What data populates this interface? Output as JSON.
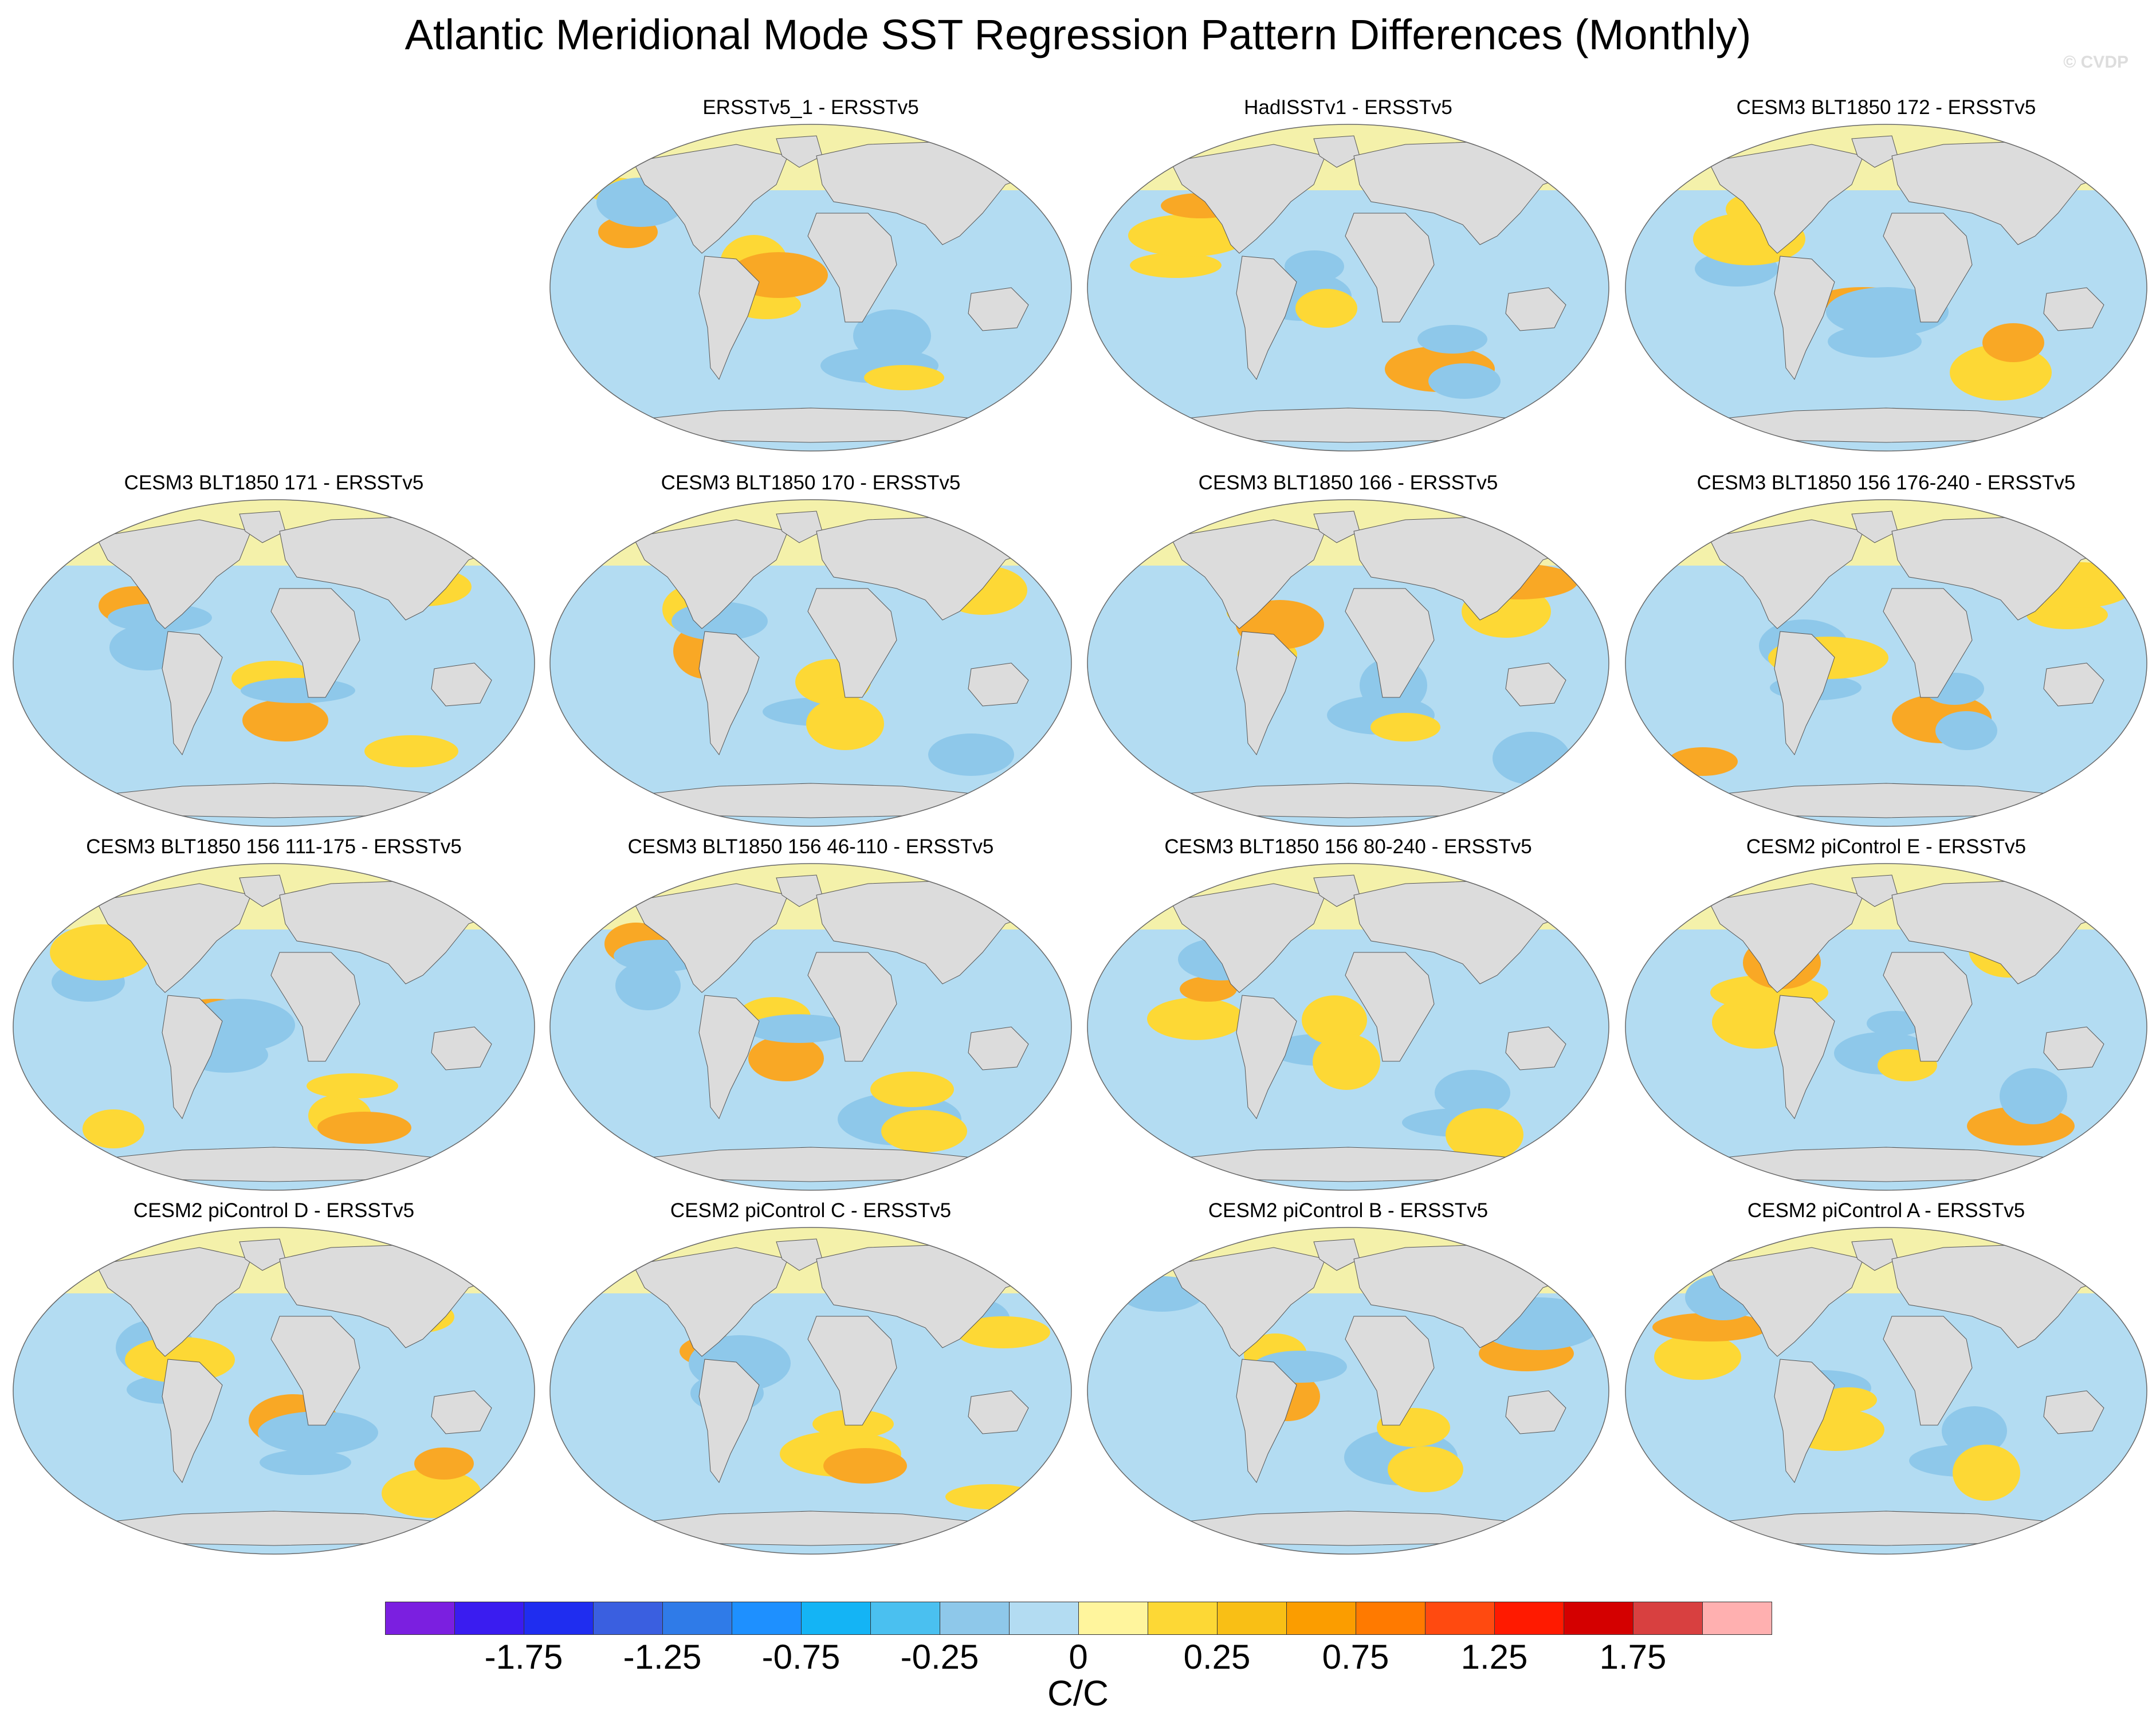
{
  "figure": {
    "title": "Atlantic Meridional Mode SST Regression Pattern Differences (Monthly)",
    "watermark": "© CVDP"
  },
  "panels": [
    {
      "title": "ERSSTv5_1 - ERSSTv5"
    },
    {
      "title": "HadISSTv1 - ERSSTv5"
    },
    {
      "title": "CESM3 BLT1850 172 - ERSSTv5"
    },
    {
      "title": "CESM3 BLT1850 171 - ERSSTv5"
    },
    {
      "title": "CESM3 BLT1850 170 - ERSSTv5"
    },
    {
      "title": "CESM3 BLT1850 166 - ERSSTv5"
    },
    {
      "title": "CESM3 BLT1850 156 176-240 - ERSSTv5"
    },
    {
      "title": "CESM3 BLT1850 156 111-175 - ERSSTv5"
    },
    {
      "title": "CESM3 BLT1850 156 46-110 - ERSSTv5"
    },
    {
      "title": "CESM3 BLT1850 156 80-240 - ERSSTv5"
    },
    {
      "title": "CESM2 piControl E - ERSSTv5"
    },
    {
      "title": "CESM2 piControl D - ERSSTv5"
    },
    {
      "title": "CESM2 piControl C - ERSSTv5"
    },
    {
      "title": "CESM2 piControl B - ERSSTv5"
    },
    {
      "title": "CESM2 piControl A - ERSSTv5"
    }
  ],
  "colors": {
    "land": "#dcdcdc",
    "ocean_neutral_pos": "#fff59d",
    "ocean_light_pos": "#fdd835",
    "ocean_med_pos": "#f9a825",
    "ocean_light_neg": "#b3dcf2",
    "ocean_med_neg": "#8ec8ea"
  },
  "colorbar": {
    "colors": [
      "#7b1fe0",
      "#3a1cf0",
      "#1f2df0",
      "#3a5fe0",
      "#2f7be8",
      "#1e90ff",
      "#14b4f5",
      "#4ac0f0",
      "#8ec8ea",
      "#b3dcf2",
      "#fff59d",
      "#fdd835",
      "#f9bf15",
      "#fb9d00",
      "#ff7a00",
      "#ff4a10",
      "#ff1a00",
      "#d40000",
      "#d84040",
      "#ffb0b0"
    ],
    "labels": [
      "-1.75",
      "-1.25",
      "-0.75",
      "-0.25",
      "0",
      "0.25",
      "0.75",
      "1.25",
      "1.75"
    ],
    "units": "C/C"
  }
}
